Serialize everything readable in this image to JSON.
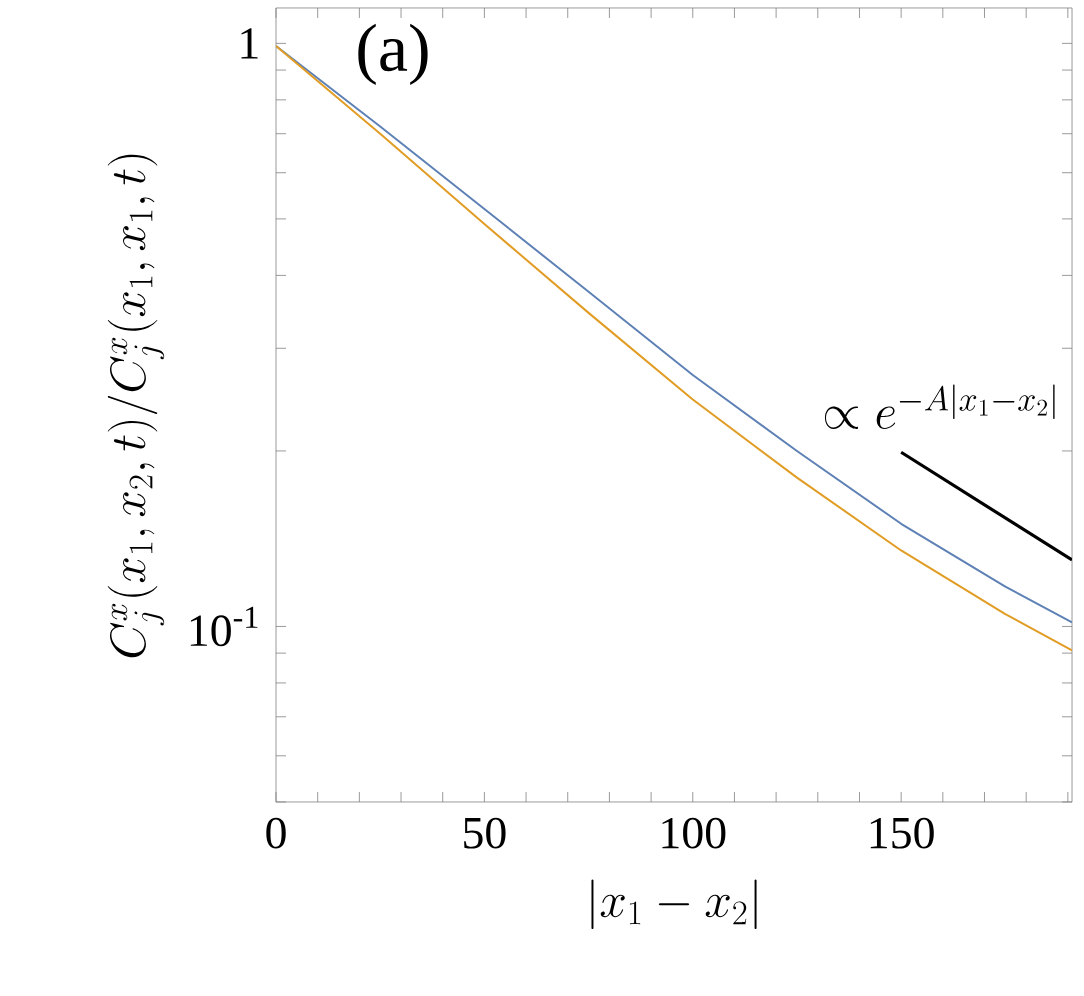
{
  "chart_data": {
    "type": "line",
    "xlabel": "|x_1-x_2|",
    "ylabel": "C^x_j(x_1,x_2,t)/C^x_j(x_1,x_1,t)",
    "log": "y",
    "grid": false,
    "marker": "none",
    "line_style": "solid",
    "xlim": [
      0,
      191
    ],
    "ylim": [
      0.05,
      1.15
    ],
    "xticks": [
      0,
      {
        "value": 10,
        "label": null
      },
      {
        "value": 20,
        "label": null
      },
      {
        "value": 30,
        "label": null
      },
      {
        "value": 40,
        "label": null
      },
      50,
      {
        "value": 60,
        "label": null
      },
      {
        "value": 70,
        "label": null
      },
      {
        "value": 80,
        "label": null
      },
      {
        "value": 90,
        "label": null
      },
      100,
      {
        "value": 110,
        "label": null
      },
      {
        "value": 120,
        "label": null
      },
      {
        "value": 130,
        "label": null
      },
      {
        "value": 140,
        "label": null
      },
      150,
      {
        "value": 160,
        "label": null
      },
      {
        "value": 170,
        "label": null
      },
      {
        "value": 180,
        "label": null
      },
      {
        "value": 190,
        "label": null
      }
    ],
    "yticks": [
      {
        "value": 0.05,
        "label": null
      },
      {
        "value": 0.06,
        "label": null
      },
      {
        "value": 0.07,
        "label": null
      },
      {
        "value": 0.08,
        "label": null
      },
      {
        "value": 0.09,
        "label": null
      },
      {
        "value": 0.1,
        "label": "10$^{-1}$"
      },
      {
        "value": 0.2,
        "label": null
      },
      {
        "value": 0.3,
        "label": null
      },
      {
        "value": 0.4,
        "label": null
      },
      {
        "value": 0.5,
        "label": null
      },
      {
        "value": 0.6,
        "label": null
      },
      {
        "value": 0.7,
        "label": null
      },
      {
        "value": 0.8,
        "label": null
      },
      {
        "value": 0.9,
        "label": null
      },
      1
    ],
    "annotations": [
      "(a)",
      "\\propto e^{-A|x_1-x_2|}"
    ],
    "series": [
      {
        "color": "#5e81b5",
        "x": [
          0,
          25,
          50,
          75,
          100,
          125,
          150,
          175,
          191
        ],
        "values": [
          0.99,
          0.72,
          0.52,
          0.375,
          0.27,
          0.2,
          0.15,
          0.117,
          0.1016
        ]
      },
      {
        "color": "#e19c24",
        "x": [
          0,
          25,
          50,
          75,
          100,
          125,
          150,
          175,
          191
        ],
        "values": [
          0.99,
          0.7,
          0.49,
          0.345,
          0.245,
          0.18,
          0.135,
          0.105,
          0.091
        ]
      },
      {
        "color": "#000000",
        "x": [
          150,
          191
        ],
        "values": [
          0.199,
          0.13
        ]
      }
    ]
  }
}
